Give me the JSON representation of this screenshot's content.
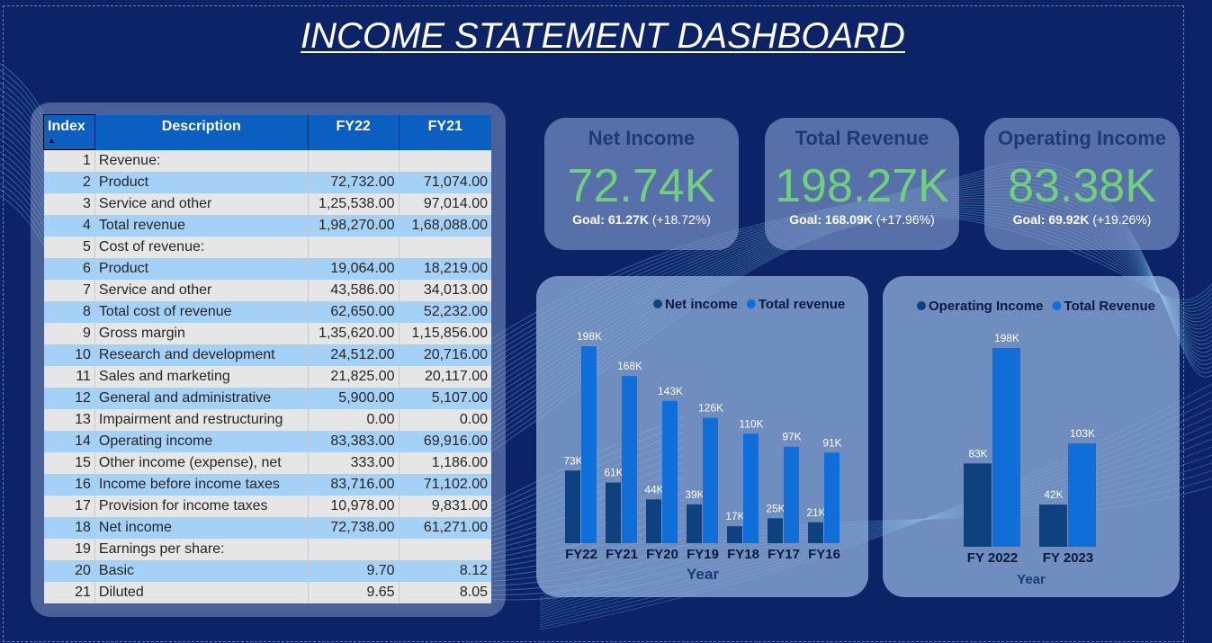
{
  "dashboard": {
    "title": "INCOME STATEMENT DASHBOARD"
  },
  "table": {
    "headers": [
      "Index",
      "Description",
      "FY22",
      "FY21"
    ],
    "rows": [
      [
        "1",
        "Revenue:",
        "",
        ""
      ],
      [
        "2",
        "Product",
        "72,732.00",
        "71,074.00"
      ],
      [
        "3",
        "Service and other",
        "1,25,538.00",
        "97,014.00"
      ],
      [
        "4",
        "Total revenue",
        "1,98,270.00",
        "1,68,088.00"
      ],
      [
        "5",
        "Cost of revenue:",
        "",
        ""
      ],
      [
        "6",
        "Product",
        "19,064.00",
        "18,219.00"
      ],
      [
        "7",
        "Service and other",
        "43,586.00",
        "34,013.00"
      ],
      [
        "8",
        "Total cost of revenue",
        "62,650.00",
        "52,232.00"
      ],
      [
        "9",
        "Gross margin",
        "1,35,620.00",
        "1,15,856.00"
      ],
      [
        "10",
        "Research and development",
        "24,512.00",
        "20,716.00"
      ],
      [
        "11",
        "Sales and marketing",
        "21,825.00",
        "20,117.00"
      ],
      [
        "12",
        "General and administrative",
        "5,900.00",
        "5,107.00"
      ],
      [
        "13",
        "Impairment and restructuring",
        "0.00",
        "0.00"
      ],
      [
        "14",
        "Operating income",
        "83,383.00",
        "69,916.00"
      ],
      [
        "15",
        "Other income (expense), net",
        "333.00",
        "1,186.00"
      ],
      [
        "16",
        "Income before income taxes",
        "83,716.00",
        "71,102.00"
      ],
      [
        "17",
        "Provision for income taxes",
        "10,978.00",
        "9,831.00"
      ],
      [
        "18",
        "Net income",
        "72,738.00",
        "61,271.00"
      ],
      [
        "19",
        "Earnings per share:",
        "",
        ""
      ],
      [
        "20",
        "Basic",
        "9.70",
        "8.12"
      ],
      [
        "21",
        "Diluted",
        "9.65",
        "8.05"
      ]
    ]
  },
  "cards": [
    {
      "title": "Net Income",
      "value": "72.74K",
      "goal_label": "Goal:",
      "goal_value": "61.27K",
      "change": "(+18.72%)"
    },
    {
      "title": "Total Revenue",
      "value": "198.27K",
      "goal_label": "Goal:",
      "goal_value": "168.09K",
      "change": "(+17.96%)"
    },
    {
      "title": "Operating Income",
      "value": "83.38K",
      "goal_label": "Goal:",
      "goal_value": "69.92K",
      "change": "(+19.26%)"
    }
  ],
  "colors": {
    "dark_series": "#0d427f",
    "light_series": "#0f6ed8",
    "kpi_green": "#6fd17a"
  },
  "chart_data": [
    {
      "type": "bar",
      "categories": [
        "FY22",
        "FY21",
        "FY20",
        "FY19",
        "FY18",
        "FY17",
        "FY16"
      ],
      "series": [
        {
          "name": "Net income",
          "values": [
            73,
            61,
            44,
            39,
            17,
            25,
            21
          ],
          "labels": [
            "73K",
            "61K",
            "44K",
            "39K",
            "17K",
            "25K",
            "21K"
          ]
        },
        {
          "name": "Total revenue",
          "values": [
            198,
            168,
            143,
            126,
            110,
            97,
            91
          ],
          "labels": [
            "198K",
            "168K",
            "143K",
            "126K",
            "110K",
            "97K",
            "91K"
          ]
        }
      ],
      "xlabel": "Year",
      "ylabel": "",
      "ylim": [
        0,
        198
      ],
      "legend": "top-right"
    },
    {
      "type": "bar",
      "categories": [
        "FY 2022",
        "FY 2023"
      ],
      "series": [
        {
          "name": "Operating Income",
          "values": [
            83,
            42
          ],
          "labels": [
            "83K",
            "42K"
          ]
        },
        {
          "name": "Total Revenue",
          "values": [
            198,
            103
          ],
          "labels": [
            "198K",
            "103K"
          ]
        }
      ],
      "xlabel": "Year",
      "ylabel": "",
      "ylim": [
        0,
        198
      ],
      "legend": "top"
    }
  ]
}
